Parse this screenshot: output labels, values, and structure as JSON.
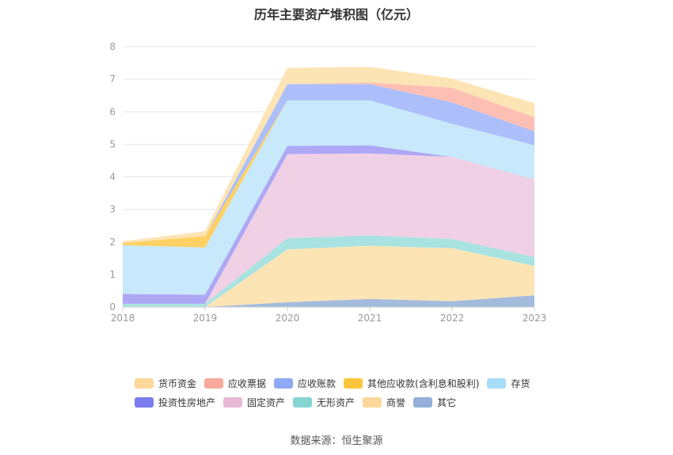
{
  "title": "历年主要资产堆积图（亿元）",
  "source": "数据来源：恒生聚源",
  "chart_data": {
    "type": "area",
    "stacked": true,
    "x": [
      "2018",
      "2019",
      "2020",
      "2021",
      "2022",
      "2023"
    ],
    "ylim": [
      0,
      8
    ],
    "yticks": [
      "0",
      "1",
      "2",
      "3",
      "4",
      "5",
      "6",
      "7",
      "8"
    ],
    "grid": true,
    "legend_position": "bottom",
    "series": [
      {
        "name": "其它",
        "color": "#9eb8dc",
        "values": [
          0.0,
          0.0,
          0.15,
          0.25,
          0.18,
          0.36
        ]
      },
      {
        "name": "商誉",
        "color": "#fde3b0",
        "values": [
          0.0,
          0.0,
          1.62,
          1.63,
          1.63,
          0.9
        ]
      },
      {
        "name": "无形资产",
        "color": "#a4e1df",
        "values": [
          0.1,
          0.1,
          0.35,
          0.32,
          0.28,
          0.28
        ]
      },
      {
        "name": "固定资产",
        "color": "#efcde3",
        "values": [
          0.0,
          0.0,
          2.58,
          2.52,
          2.52,
          2.38
        ]
      },
      {
        "name": "投资性房地产",
        "color": "#a9a2f4",
        "values": [
          0.3,
          0.28,
          0.25,
          0.25,
          0.0,
          0.0
        ]
      },
      {
        "name": "存货",
        "color": "#c4e8fb",
        "values": [
          1.5,
          1.45,
          1.4,
          1.38,
          1.02,
          1.05
        ]
      },
      {
        "name": "其他应收款(含利息和股利)",
        "color": "#ffcf5c",
        "values": [
          0.07,
          0.35,
          0.0,
          0.0,
          0.0,
          0.0
        ]
      },
      {
        "name": "应收账款",
        "color": "#a8bcfb",
        "values": [
          0.0,
          0.0,
          0.5,
          0.5,
          0.66,
          0.43
        ]
      },
      {
        "name": "应收票据",
        "color": "#fdbab0",
        "values": [
          0.0,
          0.0,
          0.0,
          0.05,
          0.45,
          0.43
        ]
      },
      {
        "name": "货币资金",
        "color": "#fde3b0",
        "values": [
          0.05,
          0.15,
          0.5,
          0.48,
          0.28,
          0.43
        ]
      }
    ],
    "legend": [
      [
        {
          "name": "货币资金",
          "color": "#fdd89a"
        },
        {
          "name": "应收票据",
          "color": "#f9a99d"
        },
        {
          "name": "应收账款",
          "color": "#8fa9f6"
        },
        {
          "name": "其他应收款(含利息和股利)",
          "color": "#fbc53d"
        },
        {
          "name": "存货",
          "color": "#a8ddf8"
        }
      ],
      [
        {
          "name": "投资性房地产",
          "color": "#7a7cef"
        },
        {
          "name": "固定资产",
          "color": "#e7b7d6"
        },
        {
          "name": "无形资产",
          "color": "#86d5d3"
        },
        {
          "name": "商誉",
          "color": "#fdd89a"
        },
        {
          "name": "其它",
          "color": "#94afd9"
        }
      ]
    ]
  }
}
